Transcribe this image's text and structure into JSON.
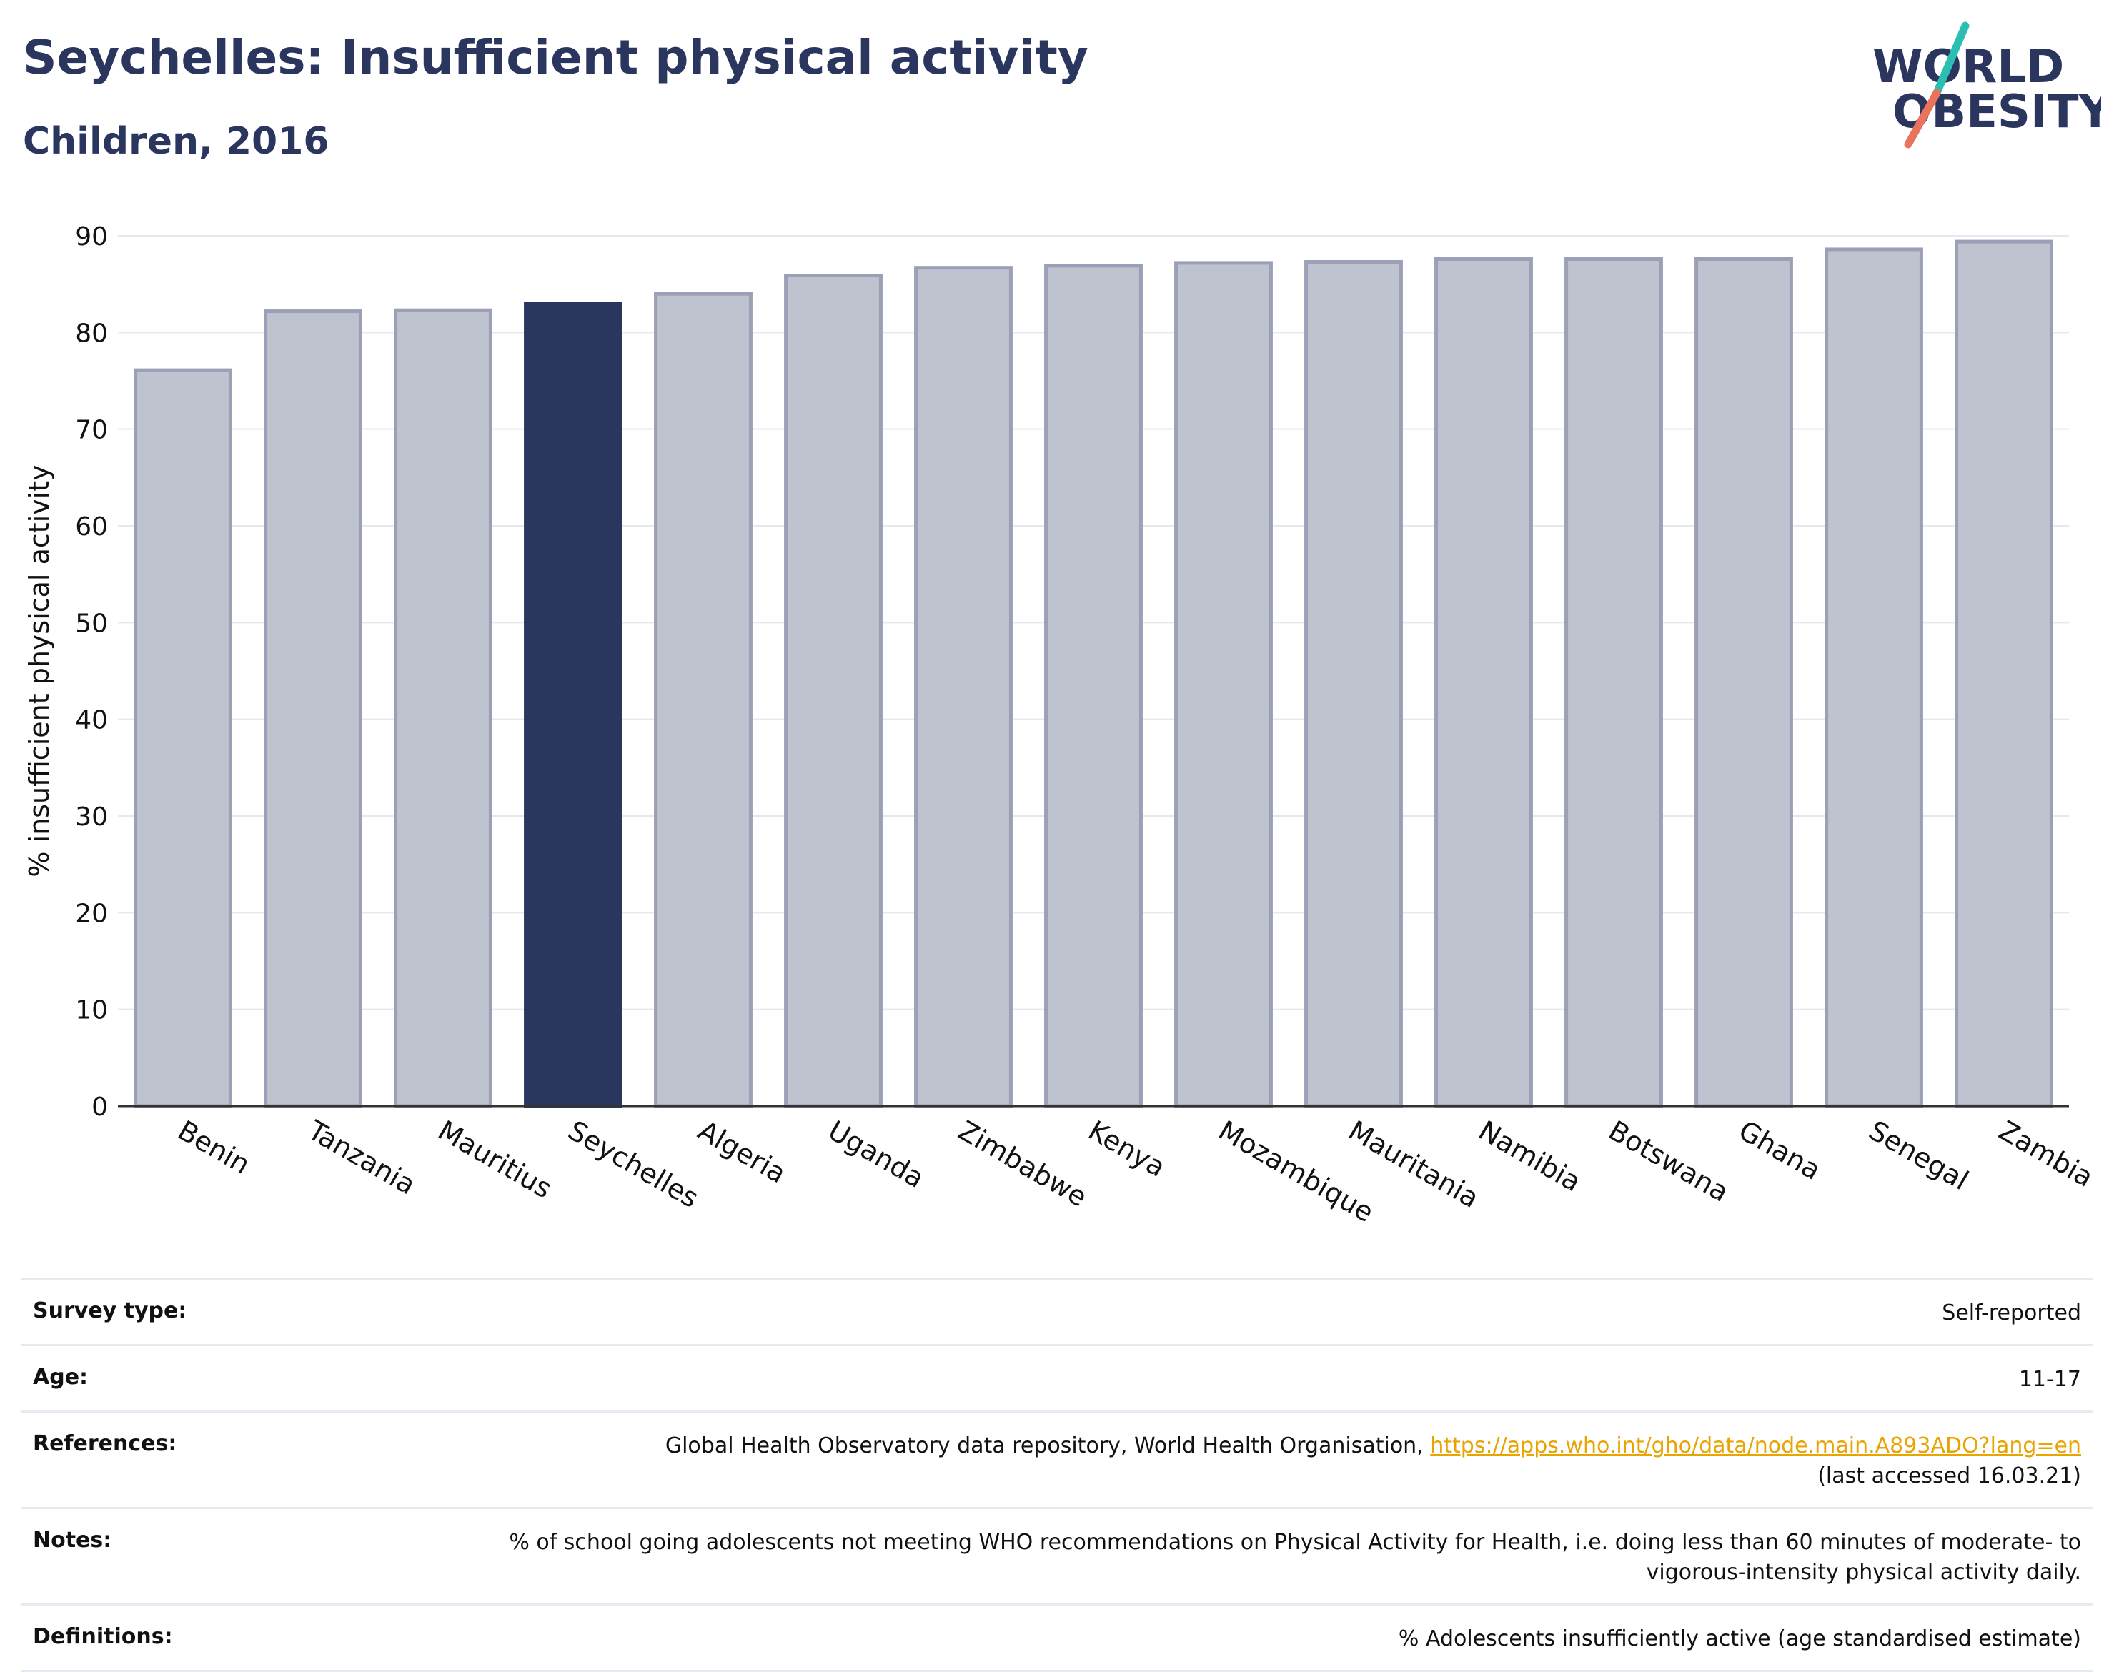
{
  "header": {
    "title": "Seychelles: Insufficient physical activity",
    "subtitle": "Children, 2016"
  },
  "logo": {
    "line1": "WORLD",
    "line2": "OBESITY",
    "accent_colors": [
      "#2bbfb4",
      "#e9735b"
    ]
  },
  "chart_data": {
    "type": "bar",
    "categories": [
      "Benin",
      "Tanzania",
      "Mauritius",
      "Seychelles",
      "Algeria",
      "Uganda",
      "Zimbabwe",
      "Kenya",
      "Mozambique",
      "Mauritania",
      "Namibia",
      "Botswana",
      "Ghana",
      "Senegal",
      "Zambia"
    ],
    "values": [
      76.1,
      82.2,
      82.3,
      83.0,
      84.0,
      85.9,
      86.7,
      86.9,
      87.2,
      87.3,
      87.6,
      87.6,
      87.6,
      88.6,
      89.4
    ],
    "highlight": "Seychelles",
    "title": "",
    "xlabel": "",
    "ylabel": "% insufficient physical activity",
    "ylim": [
      0,
      90
    ],
    "yticks": [
      0,
      10,
      20,
      30,
      40,
      50,
      60,
      70,
      80,
      90
    ],
    "grid": true,
    "colors": {
      "bar": "#bfc2cf",
      "bar_border": "#9ba0b6",
      "highlight": "#2b365f"
    }
  },
  "info": {
    "survey_label": "Survey type:",
    "survey_value": "Self-reported",
    "age_label": "Age:",
    "age_value": "11-17",
    "references_label": "References:",
    "references_text": "Global Health Observatory data repository, World Health Organisation, ",
    "references_link": "https://apps.who.int/gho/data/node.main.A893ADO?lang=en",
    "references_accessed": "(last accessed 16.03.21)",
    "notes_label": "Notes:",
    "notes_value": "% of school going adolescents not meeting WHO recommendations on Physical Activity for Health, i.e. doing less than 60 minutes of moderate- to vigorous-intensity physical activity daily.",
    "definitions_label": "Definitions:",
    "definitions_value": "% Adolescents insufficiently active (age standardised estimate)"
  }
}
